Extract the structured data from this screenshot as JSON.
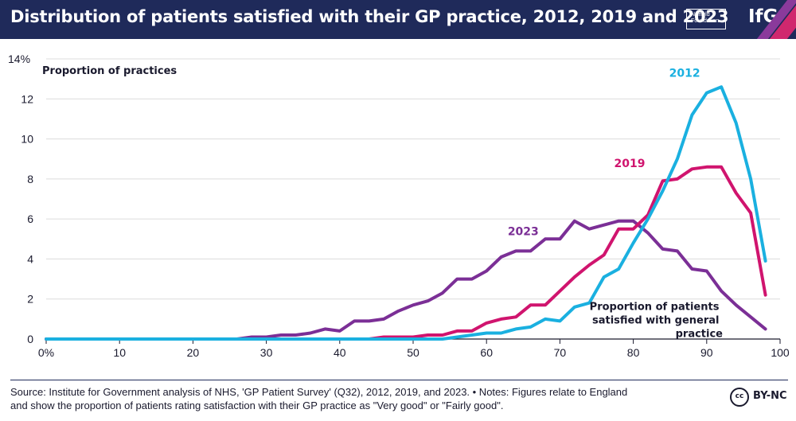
{
  "header": {
    "title": "Distribution of patients satisfied with their GP practice, 2012, 2019 and 2023",
    "nuffield_logo": "Nuffield Foundation",
    "ifg_logo": "IfG"
  },
  "colors": {
    "header_bg": "#1f2a5a",
    "series_2012": "#1ab0e0",
    "series_2019": "#d0146e",
    "series_2023": "#7b2f96",
    "grid": "#dcdcdc",
    "text": "#1a1a2e"
  },
  "chart_data": {
    "type": "line",
    "title": "Distribution of patients satisfied with their GP practice, 2012, 2019 and 2023",
    "ylabel": "Proportion of practices",
    "xlabel": "Proportion of patients satisfied with general practice",
    "xlabel_lines": [
      "Proportion of patients",
      "satisfied with general",
      "practice"
    ],
    "xlim": [
      0,
      100
    ],
    "ylim": [
      0,
      14
    ],
    "x_ticks": [
      0,
      10,
      20,
      30,
      40,
      50,
      60,
      70,
      80,
      90,
      100
    ],
    "x_tick_labels": [
      "0%",
      "10",
      "20",
      "30",
      "40",
      "50",
      "60",
      "70",
      "80",
      "90",
      "100"
    ],
    "y_ticks": [
      0,
      2,
      4,
      6,
      8,
      10,
      12,
      14
    ],
    "y_tick_labels": [
      "0",
      "2",
      "4",
      "6",
      "8",
      "10",
      "12",
      "14%"
    ],
    "grid": "horizontal",
    "series": [
      {
        "name": "2012",
        "color": "#1ab0e0",
        "x": [
          0,
          50,
          52,
          54,
          56,
          58,
          60,
          62,
          64,
          66,
          68,
          70,
          72,
          74,
          76,
          78,
          80,
          82,
          84,
          86,
          88,
          90,
          92,
          94,
          96,
          98
        ],
        "values": [
          0,
          0,
          0,
          0,
          0.1,
          0.2,
          0.3,
          0.3,
          0.5,
          0.6,
          1.0,
          0.9,
          1.6,
          1.8,
          3.1,
          3.5,
          4.8,
          6.0,
          7.4,
          9.0,
          11.2,
          12.3,
          12.6,
          10.8,
          8.0,
          3.9
        ]
      },
      {
        "name": "2019",
        "color": "#d0146e",
        "x": [
          0,
          44,
          46,
          48,
          50,
          52,
          54,
          56,
          58,
          60,
          62,
          64,
          66,
          68,
          70,
          72,
          74,
          76,
          78,
          80,
          82,
          84,
          86,
          88,
          90,
          92,
          94,
          96,
          98
        ],
        "values": [
          0,
          0,
          0.1,
          0.1,
          0.1,
          0.2,
          0.2,
          0.4,
          0.4,
          0.8,
          1.0,
          1.1,
          1.7,
          1.7,
          2.4,
          3.1,
          3.7,
          4.2,
          5.5,
          5.5,
          6.2,
          7.9,
          8.0,
          8.5,
          8.6,
          8.6,
          7.3,
          6.3,
          2.2
        ]
      },
      {
        "name": "2023",
        "color": "#7b2f96",
        "x": [
          0,
          26,
          28,
          30,
          32,
          34,
          36,
          38,
          40,
          42,
          44,
          46,
          48,
          50,
          52,
          54,
          56,
          58,
          60,
          62,
          64,
          66,
          68,
          70,
          72,
          74,
          76,
          78,
          80,
          82,
          84,
          86,
          88,
          90,
          92,
          94,
          96,
          98
        ],
        "values": [
          0,
          0,
          0.1,
          0.1,
          0.2,
          0.2,
          0.3,
          0.5,
          0.4,
          0.9,
          0.9,
          1.0,
          1.4,
          1.7,
          1.9,
          2.3,
          3.0,
          3.0,
          3.4,
          4.1,
          4.4,
          4.4,
          5.0,
          5.0,
          5.9,
          5.5,
          5.7,
          5.9,
          5.9,
          5.3,
          4.5,
          4.4,
          3.5,
          3.4,
          2.4,
          1.7,
          1.1,
          0.5
        ]
      }
    ],
    "annotations": [
      {
        "text": "2012",
        "series": "2012"
      },
      {
        "text": "2019",
        "series": "2019"
      },
      {
        "text": "2023",
        "series": "2023"
      }
    ]
  },
  "footer": {
    "source_line1": "Source: Institute for Government analysis of NHS, 'GP Patient Survey' (Q32), 2012, 2019, and 2023. • Notes: Figures relate to England",
    "source_line2": "and show the proportion of patients rating satisfaction with their GP practice as \"Very good\" or \"Fairly good\".",
    "cc_icon_text": "cc",
    "license": "BY-NC"
  }
}
